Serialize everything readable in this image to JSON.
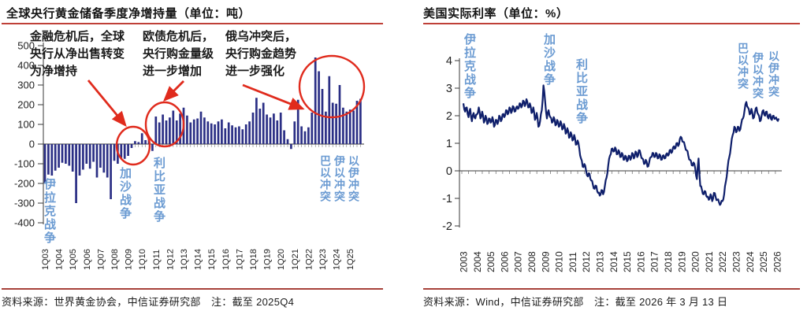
{
  "left_chart": {
    "title": "全球央行黄金储备季度净增持量（单位：吨）",
    "source_note": "资料来源：世界黄金协会，中信证券研究部　注：截至 2025Q4",
    "annotations": [
      "金融危机后，全球央行从净出售转变为净增持",
      "欧债危机后，央行购金量级进一步增加",
      "俄乌冲突后，央行购金趋势进一步强化"
    ],
    "war_labels": [
      "伊拉克战争",
      "加沙战争",
      "利比亚战争",
      "巴以冲突",
      "伊以冲突",
      "以伊冲突"
    ]
  },
  "right_chart": {
    "title": "美国实际利率（单位：%）",
    "source_note": "资料来源：Wind，中信证券研究部　注：截至 2026 年 3 月 13 日",
    "war_labels": [
      "伊拉克战争",
      "加沙战争",
      "利比亚战争",
      "巴以冲突",
      "伊以冲突",
      "以伊冲突"
    ]
  },
  "colors": {
    "bar": "#2b2f85",
    "line": "#0f1f6b",
    "axis": "#3a3a3a",
    "tick_label": "#222222",
    "annotation_red": "#e02b1d",
    "rule_red": "#bf4038",
    "war_label_blue": "#6b9bd2"
  },
  "chart_data": [
    {
      "type": "bar",
      "title": "全球央行黄金储备季度净增持量（单位：吨）",
      "ylabel": "吨",
      "ylim": [
        -400,
        500
      ],
      "y_ticks": [
        500,
        400,
        300,
        200,
        100,
        0,
        -100,
        -200,
        -300,
        -400
      ],
      "x_tick_labels": [
        "1Q03",
        "1Q04",
        "1Q05",
        "1Q06",
        "1Q07",
        "1Q08",
        "1Q09",
        "1Q10",
        "1Q11",
        "1Q12",
        "1Q13",
        "1Q14",
        "1Q15",
        "1Q16",
        "1Q17",
        "1Q18",
        "1Q19",
        "1Q20",
        "1Q21",
        "1Q22",
        "1Q23",
        "1Q24",
        "1Q25"
      ],
      "categories": [
        "1Q03",
        "2Q03",
        "3Q03",
        "4Q03",
        "1Q04",
        "2Q04",
        "3Q04",
        "4Q04",
        "1Q05",
        "2Q05",
        "3Q05",
        "4Q05",
        "1Q06",
        "2Q06",
        "3Q06",
        "4Q06",
        "1Q07",
        "2Q07",
        "3Q07",
        "4Q07",
        "1Q08",
        "2Q08",
        "3Q08",
        "4Q08",
        "1Q09",
        "2Q09",
        "3Q09",
        "4Q09",
        "1Q10",
        "2Q10",
        "3Q10",
        "4Q10",
        "1Q11",
        "2Q11",
        "3Q11",
        "4Q11",
        "1Q12",
        "2Q12",
        "3Q12",
        "4Q12",
        "1Q13",
        "2Q13",
        "3Q13",
        "4Q13",
        "1Q14",
        "2Q14",
        "3Q14",
        "4Q14",
        "1Q15",
        "2Q15",
        "3Q15",
        "4Q15",
        "1Q16",
        "2Q16",
        "3Q16",
        "4Q16",
        "1Q17",
        "2Q17",
        "3Q17",
        "4Q17",
        "1Q18",
        "2Q18",
        "3Q18",
        "4Q18",
        "1Q19",
        "2Q19",
        "3Q19",
        "4Q19",
        "1Q20",
        "2Q20",
        "3Q20",
        "4Q20",
        "1Q21",
        "2Q21",
        "3Q21",
        "4Q21",
        "1Q22",
        "2Q22",
        "3Q22",
        "4Q22",
        "1Q23",
        "2Q23",
        "3Q23",
        "4Q23",
        "1Q24",
        "2Q24",
        "3Q24",
        "4Q24",
        "1Q25",
        "2Q25",
        "3Q25",
        "4Q25"
      ],
      "values": [
        -200,
        -155,
        -160,
        -135,
        -120,
        -95,
        -100,
        -110,
        -140,
        -300,
        -160,
        -130,
        -100,
        -125,
        -90,
        -170,
        -120,
        -145,
        -170,
        -280,
        -85,
        -100,
        -70,
        -75,
        -60,
        -20,
        15,
        10,
        55,
        20,
        30,
        -35,
        140,
        110,
        150,
        120,
        135,
        170,
        120,
        155,
        185,
        145,
        110,
        125,
        130,
        165,
        135,
        115,
        105,
        100,
        115,
        125,
        80,
        110,
        95,
        85,
        90,
        75,
        100,
        115,
        160,
        235,
        180,
        210,
        150,
        135,
        155,
        120,
        160,
        70,
        25,
        -25,
        115,
        225,
        90,
        65,
        85,
        160,
        440,
        370,
        280,
        165,
        345,
        210,
        205,
        300,
        185,
        165,
        175,
        170,
        220,
        230
      ]
    },
    {
      "type": "line",
      "title": "美国实际利率（单位：%）",
      "ylabel": "%",
      "ylim": [
        -2,
        4
      ],
      "y_ticks": [
        4,
        3,
        2,
        1,
        0,
        -1,
        -2
      ],
      "x_tick_labels": [
        "2003",
        "2004",
        "2005",
        "2006",
        "2007",
        "2008",
        "2009",
        "2010",
        "2011",
        "2012",
        "2013",
        "2014",
        "2015",
        "2016",
        "2017",
        "2018",
        "2019",
        "2020",
        "2021",
        "2022",
        "2023",
        "2024",
        "2025",
        "2026"
      ],
      "x_start": 2003.0,
      "x_step": 0.125,
      "values": [
        2.45,
        2.15,
        2.3,
        1.95,
        2.25,
        1.8,
        2.1,
        1.9,
        2.05,
        2.3,
        1.9,
        2.15,
        1.75,
        2.0,
        1.7,
        1.9,
        1.75,
        1.95,
        1.6,
        1.85,
        1.7,
        2.0,
        1.8,
        2.05,
        1.95,
        2.2,
        2.05,
        2.3,
        2.1,
        2.35,
        2.15,
        2.3,
        2.25,
        2.45,
        2.3,
        2.55,
        2.35,
        2.6,
        2.3,
        2.45,
        2.1,
        2.3,
        1.85,
        2.1,
        1.6,
        1.8,
        2.2,
        3.1,
        2.5,
        1.9,
        2.2,
        1.95,
        1.75,
        1.95,
        1.65,
        1.85,
        1.6,
        1.8,
        1.5,
        1.7,
        1.35,
        1.55,
        1.2,
        1.4,
        1.1,
        1.3,
        0.95,
        1.1,
        0.8,
        0.45,
        0.15,
        0.25,
        0.0,
        -0.2,
        -0.1,
        -0.35,
        -0.5,
        -0.65,
        -0.55,
        -0.8,
        -0.9,
        -0.7,
        -0.85,
        -0.55,
        -0.25,
        0.2,
        0.55,
        0.8,
        0.7,
        0.85,
        0.6,
        0.75,
        0.5,
        0.65,
        0.4,
        0.55,
        0.35,
        0.55,
        0.4,
        0.65,
        0.45,
        0.7,
        0.5,
        0.75,
        0.6,
        0.45,
        0.25,
        0.4,
        0.15,
        0.3,
        0.5,
        0.65,
        0.5,
        0.65,
        0.45,
        0.6,
        0.4,
        0.55,
        0.45,
        0.6,
        0.55,
        0.75,
        0.65,
        0.85,
        0.8,
        1.0,
        0.9,
        1.15,
        1.2,
        1.05,
        0.9,
        0.75,
        0.55,
        0.4,
        0.2,
        0.3,
        0.1,
        -0.3,
        0.45,
        -0.55,
        -0.7,
        -0.85,
        -0.75,
        -0.95,
        -1.05,
        -0.85,
        -1.1,
        -0.8,
        -0.95,
        -1.05,
        -1.15,
        -1.2,
        -1.1,
        -0.85,
        -0.4,
        0.1,
        0.5,
        0.9,
        1.3,
        1.6,
        1.4,
        1.6,
        1.45,
        1.7,
        1.9,
        2.2,
        2.5,
        2.3,
        2.05,
        2.25,
        1.9,
        2.1,
        2.3,
        2.05,
        1.8,
        2.0,
        2.2,
        2.0,
        2.15,
        1.9,
        2.05,
        1.85,
        2.0,
        1.9,
        1.85,
        1.9
      ]
    }
  ]
}
